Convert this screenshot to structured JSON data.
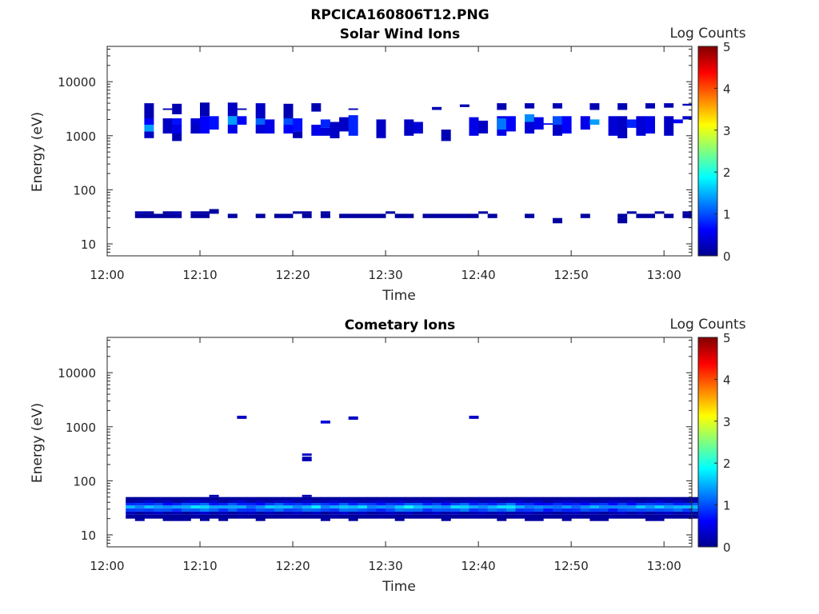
{
  "figure_title": "RPCICA160806T12.PNG",
  "colormap_colors": [
    "#00008f",
    "#0000ff",
    "#00ffff",
    "#ffff00",
    "#ff0000",
    "#800000"
  ],
  "chart_data": [
    {
      "type": "heatmap",
      "title": "Solar Wind Ions",
      "xlabel": "Time",
      "ylabel": "Energy (eV)",
      "x_tick_labels": [
        "12:00",
        "12:10",
        "12:20",
        "12:30",
        "12:40",
        "12:50",
        "13:00"
      ],
      "y_tick_labels": [
        "10",
        "100",
        "1000",
        "10000"
      ],
      "xlim": [
        "12:00",
        "13:03"
      ],
      "ylim": [
        6,
        45000
      ],
      "y_scale": "log",
      "colorbar": {
        "label": "Log Counts",
        "range": [
          0,
          5
        ],
        "ticks": [
          "0",
          "1",
          "2",
          "3",
          "4",
          "5"
        ]
      },
      "cells": [
        [
          "12:03",
          30,
          36,
          0.1
        ],
        [
          "12:03",
          36,
          40,
          0.2
        ],
        [
          "12:04",
          30,
          36,
          0.1
        ],
        [
          "12:04",
          36,
          40,
          0.1
        ],
        [
          "12:05",
          30,
          36,
          0.1
        ],
        [
          "12:06",
          36,
          40,
          0.1
        ],
        [
          "12:06",
          30,
          36,
          0.1
        ],
        [
          "12:07",
          30,
          36,
          0.1
        ],
        [
          "12:07",
          36,
          40,
          0.2
        ],
        [
          "12:09",
          30,
          36,
          0.1
        ],
        [
          "12:09",
          36,
          40,
          0.2
        ],
        [
          "12:10",
          30,
          36,
          0.1
        ],
        [
          "12:10",
          36,
          40,
          0.1
        ],
        [
          "12:11",
          36,
          44,
          0.1
        ],
        [
          "12:13",
          30,
          36,
          0.1
        ],
        [
          "12:16",
          30,
          36,
          0.1
        ],
        [
          "12:18",
          30,
          36,
          0.1
        ],
        [
          "12:19",
          30,
          36,
          0.1
        ],
        [
          "12:20",
          36,
          40,
          0.1
        ],
        [
          "12:21",
          30,
          36,
          0.1
        ],
        [
          "12:21",
          36,
          40,
          0.1
        ],
        [
          "12:23",
          30,
          36,
          0.1
        ],
        [
          "12:23",
          36,
          40,
          0.1
        ],
        [
          "12:25",
          30,
          36,
          0.1
        ],
        [
          "12:26",
          30,
          36,
          0.1
        ],
        [
          "12:27",
          30,
          36,
          0.1
        ],
        [
          "12:28",
          30,
          36,
          0.1
        ],
        [
          "12:29",
          30,
          36,
          0.1
        ],
        [
          "12:30",
          36,
          40,
          0.1
        ],
        [
          "12:31",
          30,
          36,
          0.1
        ],
        [
          "12:32",
          30,
          36,
          0.1
        ],
        [
          "12:34",
          30,
          36,
          0.1
        ],
        [
          "12:35",
          30,
          36,
          0.1
        ],
        [
          "12:36",
          30,
          36,
          0.1
        ],
        [
          "12:37",
          30,
          36,
          0.1
        ],
        [
          "12:38",
          30,
          36,
          0.1
        ],
        [
          "12:39",
          30,
          36,
          0.1
        ],
        [
          "12:40",
          36,
          40,
          0.1
        ],
        [
          "12:41",
          30,
          36,
          0.1
        ],
        [
          "12:45",
          30,
          36,
          0.1
        ],
        [
          "12:48",
          24,
          30,
          0.1
        ],
        [
          "12:51",
          30,
          36,
          0.1
        ],
        [
          "12:55",
          24,
          30,
          0.1
        ],
        [
          "12:55",
          30,
          36,
          0.1
        ],
        [
          "12:56",
          36,
          40,
          0.1
        ],
        [
          "12:57",
          30,
          36,
          0.1
        ],
        [
          "12:58",
          30,
          36,
          0.1
        ],
        [
          "12:59",
          36,
          40,
          0.1
        ],
        [
          "13:00",
          30,
          36,
          0.1
        ],
        [
          "13:02",
          30,
          36,
          0.1
        ],
        [
          "13:02",
          36,
          40,
          0.1
        ],
        [
          "12:04",
          900,
          1200,
          0.3
        ],
        [
          "12:04",
          1200,
          1600,
          1.4
        ],
        [
          "12:04",
          1600,
          2100,
          0.6
        ],
        [
          "12:04",
          2100,
          4000,
          0.2
        ],
        [
          "12:06",
          1100,
          2100,
          0.3
        ],
        [
          "12:06",
          3000,
          3200,
          0.2
        ],
        [
          "12:07",
          800,
          1100,
          0.2
        ],
        [
          "12:07",
          1100,
          1600,
          0.5
        ],
        [
          "12:07",
          1600,
          2100,
          0.7
        ],
        [
          "12:07",
          2500,
          3900,
          0.2
        ],
        [
          "12:09",
          1100,
          1600,
          0.3
        ],
        [
          "12:09",
          1600,
          2100,
          0.4
        ],
        [
          "12:10",
          1100,
          2300,
          0.6
        ],
        [
          "12:10",
          2300,
          4100,
          0.2
        ],
        [
          "12:11",
          1300,
          2300,
          0.7
        ],
        [
          "12:13",
          1100,
          1600,
          0.5
        ],
        [
          "12:13",
          1600,
          2300,
          1.4
        ],
        [
          "12:13",
          2300,
          4100,
          0.3
        ],
        [
          "12:14",
          3000,
          3200,
          0.2
        ],
        [
          "12:14",
          1600,
          2300,
          0.6
        ],
        [
          "12:16",
          1100,
          1600,
          0.4
        ],
        [
          "12:16",
          1600,
          2100,
          1.1
        ],
        [
          "12:16",
          2100,
          4000,
          0.3
        ],
        [
          "12:17",
          1100,
          2000,
          0.5
        ],
        [
          "12:19",
          1100,
          1600,
          0.6
        ],
        [
          "12:19",
          1600,
          2100,
          1.0
        ],
        [
          "12:19",
          2100,
          3900,
          0.2
        ],
        [
          "12:20",
          900,
          1200,
          0.2
        ],
        [
          "12:20",
          1200,
          2100,
          0.7
        ],
        [
          "12:22",
          1000,
          1600,
          0.5
        ],
        [
          "12:22",
          2800,
          4000,
          0.2
        ],
        [
          "12:23",
          1000,
          1400,
          0.4
        ],
        [
          "12:23",
          1400,
          2000,
          0.8
        ],
        [
          "12:24",
          900,
          1800,
          0.3
        ],
        [
          "12:25",
          1200,
          2200,
          0.3
        ],
        [
          "12:26",
          1000,
          2400,
          0.8
        ],
        [
          "12:26",
          3000,
          3200,
          0.2
        ],
        [
          "12:29",
          900,
          2000,
          0.3
        ],
        [
          "12:32",
          1000,
          2000,
          0.3
        ],
        [
          "12:33",
          1100,
          1800,
          0.4
        ],
        [
          "12:35",
          3000,
          3400,
          0.2
        ],
        [
          "12:36",
          800,
          1300,
          0.2
        ],
        [
          "12:38",
          3400,
          3800,
          0.2
        ],
        [
          "12:39",
          1000,
          2200,
          0.5
        ],
        [
          "12:40",
          1100,
          1900,
          0.3
        ],
        [
          "12:42",
          1000,
          2300,
          0.5
        ],
        [
          "12:42",
          1300,
          2100,
          1.2
        ],
        [
          "12:42",
          3000,
          4000,
          0.2
        ],
        [
          "12:43",
          1200,
          2300,
          0.6
        ],
        [
          "12:45",
          1100,
          1800,
          0.4
        ],
        [
          "12:45",
          1800,
          2500,
          1.3
        ],
        [
          "12:45",
          3200,
          4000,
          0.2
        ],
        [
          "12:46",
          1300,
          2200,
          0.5
        ],
        [
          "12:47",
          1600,
          1700,
          0.5
        ],
        [
          "12:48",
          1000,
          1600,
          0.3
        ],
        [
          "12:48",
          1600,
          2300,
          1.0
        ],
        [
          "12:48",
          3200,
          4000,
          0.2
        ],
        [
          "12:49",
          1100,
          2300,
          0.6
        ],
        [
          "12:51",
          1300,
          2300,
          0.5
        ],
        [
          "12:52",
          1600,
          2000,
          1.4
        ],
        [
          "12:52",
          3000,
          4000,
          0.2
        ],
        [
          "12:54",
          1000,
          2300,
          0.4
        ],
        [
          "12:55",
          900,
          2300,
          0.3
        ],
        [
          "12:55",
          3000,
          4000,
          0.2
        ],
        [
          "12:56",
          1400,
          2000,
          0.8
        ],
        [
          "12:57",
          1000,
          2300,
          0.4
        ],
        [
          "12:58",
          1100,
          2300,
          0.5
        ],
        [
          "12:58",
          3200,
          4000,
          0.2
        ],
        [
          "13:00",
          1000,
          2300,
          0.3
        ],
        [
          "13:00",
          3300,
          4000,
          0.2
        ],
        [
          "13:01",
          1700,
          2000,
          0.6
        ],
        [
          "13:02",
          2000,
          2300,
          0.3
        ],
        [
          "13:02",
          3600,
          3900,
          0.2
        ]
      ]
    },
    {
      "type": "heatmap",
      "title": "Cometary Ions",
      "xlabel": "Time",
      "ylabel": "Energy (eV)",
      "x_tick_labels": [
        "12:00",
        "12:10",
        "12:20",
        "12:30",
        "12:40",
        "12:50",
        "13:00"
      ],
      "y_tick_labels": [
        "10",
        "100",
        "1000",
        "10000"
      ],
      "xlim": [
        "12:00",
        "13:03"
      ],
      "ylim": [
        6,
        45000
      ],
      "y_scale": "log",
      "colorbar": {
        "label": "Log Counts",
        "range": [
          0,
          5
        ],
        "ticks": [
          "0",
          "1",
          "2",
          "3",
          "4",
          "5"
        ]
      },
      "band": {
        "edges": [
          20,
          24,
          27,
          31,
          35,
          39,
          44,
          50
        ],
        "profile": [
          0,
          0.15,
          0.7,
          1.0,
          0.6,
          0.15,
          0
        ],
        "time_levels": [
          1.4,
          1.3,
          1.5,
          1.5,
          1.3,
          1.3,
          1.5,
          1.7,
          1.8,
          1.4,
          1.3,
          1.5,
          1.4,
          1.2,
          1.3,
          1.5,
          1.6,
          1.5,
          1.4,
          1.5,
          1.7,
          1.3,
          1.4,
          1.7,
          1.5,
          1.6,
          1.3,
          1.3,
          1.4,
          1.6,
          1.8,
          1.6,
          1.4,
          1.5,
          1.3,
          1.6,
          1.7,
          1.4,
          1.4,
          1.5,
          1.6,
          1.8,
          1.4,
          1.3,
          1.3,
          1.1,
          1.2,
          1.3,
          1.2,
          1.3,
          1.4,
          1.3,
          1.2,
          1.4,
          1.3,
          1.5,
          1.4,
          1.6,
          1.5,
          1.5,
          1.4,
          1.6,
          1.8
        ],
        "start": "12:02"
      },
      "cells": [
        [
          "12:03",
          18,
          21,
          0.1
        ],
        [
          "12:06",
          18,
          21,
          0.1
        ],
        [
          "12:07",
          18,
          21,
          0.1
        ],
        [
          "12:08",
          18,
          21,
          0.1
        ],
        [
          "12:10",
          18,
          21,
          0.1
        ],
        [
          "12:12",
          18,
          21,
          0.1
        ],
        [
          "12:16",
          18,
          21,
          0.1
        ],
        [
          "12:23",
          18,
          21,
          0.1
        ],
        [
          "12:26",
          18,
          21,
          0.1
        ],
        [
          "12:31",
          18,
          21,
          0.1
        ],
        [
          "12:36",
          18,
          21,
          0.1
        ],
        [
          "12:42",
          18,
          21,
          0.1
        ],
        [
          "12:45",
          18,
          21,
          0.1
        ],
        [
          "12:46",
          18,
          21,
          0.1
        ],
        [
          "12:49",
          18,
          21,
          0.1
        ],
        [
          "12:52",
          18,
          21,
          0.1
        ],
        [
          "12:53",
          18,
          21,
          0.1
        ],
        [
          "12:58",
          18,
          21,
          0.1
        ],
        [
          "12:59",
          18,
          21,
          0.1
        ],
        [
          "12:11",
          50,
          55,
          0.2
        ],
        [
          "12:21",
          50,
          55,
          0.2
        ],
        [
          "12:14",
          1400,
          1600,
          0.3
        ],
        [
          "12:21",
          230,
          280,
          0.2
        ],
        [
          "12:21",
          290,
          320,
          0.3
        ],
        [
          "12:23",
          1150,
          1300,
          0.4
        ],
        [
          "12:26",
          1350,
          1550,
          0.3
        ],
        [
          "12:39",
          1400,
          1600,
          0.3
        ]
      ]
    }
  ]
}
